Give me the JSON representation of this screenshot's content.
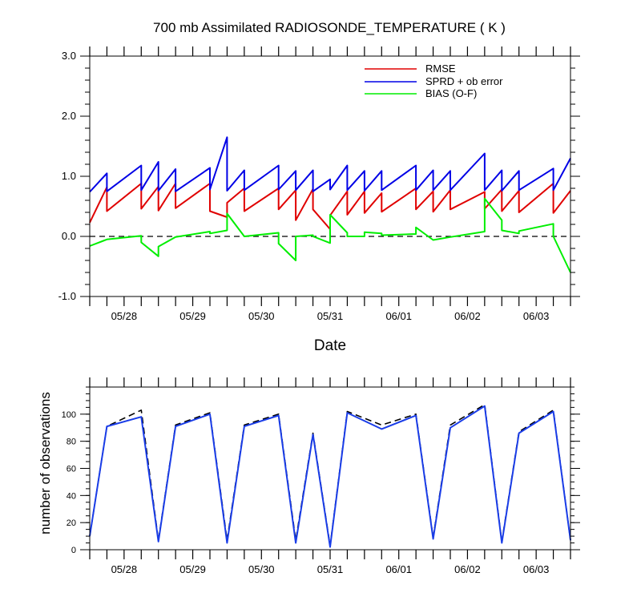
{
  "chart_data": [
    {
      "type": "line",
      "title": "700 mb Assimilated RADIOSONDE_TEMPERATURE ( K )",
      "xlabel": "Date",
      "ylabel": "",
      "ylim": [
        -1.0,
        3.0
      ],
      "yticks": [
        "-1.0",
        "0.0",
        "1.0",
        "2.0",
        "3.0"
      ],
      "xticks": [
        "05/28",
        "05/29",
        "05/30",
        "05/31",
        "06/01",
        "06/02",
        "06/03"
      ],
      "zero_line": "dashed",
      "legend_position": "top-right",
      "series": [
        {
          "name": "RMSE",
          "color": "#e00000",
          "x": [
            0,
            0.25,
            0.25,
            0.75,
            0.75,
            1,
            1,
            1.25,
            1.25,
            1.75,
            1.75,
            2,
            2,
            2.25,
            2.25,
            2.75,
            2.75,
            3,
            3,
            3.25,
            3.25,
            3.5,
            3.5,
            3.75,
            3.75,
            4,
            4,
            4.25,
            4.25,
            4.75,
            4.75,
            5,
            5,
            5.25,
            5.25,
            5.75,
            5.75,
            6,
            6,
            6.25,
            6.25,
            6.75,
            6.75,
            7
          ],
          "values": [
            0.23,
            0.82,
            0.42,
            0.88,
            0.46,
            0.83,
            0.43,
            0.88,
            0.47,
            0.88,
            0.42,
            0.32,
            0.56,
            0.8,
            0.42,
            0.8,
            0.45,
            0.77,
            0.27,
            0.79,
            0.45,
            0.12,
            0.35,
            0.75,
            0.36,
            0.75,
            0.39,
            0.72,
            0.41,
            0.8,
            0.45,
            0.75,
            0.41,
            0.77,
            0.45,
            0.74,
            0.46,
            0.78,
            0.42,
            0.76,
            0.4,
            0.88,
            0.39,
            0.76
          ]
        },
        {
          "name": "SPRD + ob error",
          "color": "#0000e6",
          "x": [
            0,
            0.25,
            0.25,
            0.75,
            0.75,
            1,
            1,
            1.25,
            1.25,
            1.75,
            1.75,
            2,
            2,
            2.25,
            2.25,
            2.75,
            2.75,
            3,
            3,
            3.25,
            3.25,
            3.5,
            3.5,
            3.75,
            3.75,
            4,
            4,
            4.25,
            4.25,
            4.75,
            4.75,
            5,
            5,
            5.25,
            5.25,
            5.75,
            5.75,
            6,
            6,
            6.25,
            6.25,
            6.75,
            6.75,
            7
          ],
          "values": [
            0.74,
            1.05,
            0.75,
            1.18,
            0.77,
            1.24,
            0.76,
            1.12,
            0.75,
            1.14,
            0.78,
            1.65,
            0.76,
            1.1,
            0.77,
            1.18,
            0.78,
            1.09,
            0.77,
            1.1,
            0.75,
            0.95,
            0.78,
            1.18,
            0.77,
            1.09,
            0.76,
            1.09,
            0.77,
            1.18,
            0.77,
            1.1,
            0.77,
            1.09,
            0.77,
            1.38,
            0.77,
            1.1,
            0.76,
            1.09,
            0.77,
            1.13,
            0.77,
            1.3
          ]
        },
        {
          "name": "BIAS (O-F)",
          "color": "#00ee00",
          "x": [
            0,
            0.25,
            0.25,
            0.75,
            0.75,
            1,
            1,
            1.25,
            1.25,
            1.75,
            1.75,
            2,
            2,
            2.25,
            2.25,
            2.75,
            2.75,
            3,
            3,
            3.25,
            3.25,
            3.5,
            3.5,
            3.75,
            3.75,
            4,
            4,
            4.25,
            4.25,
            4.75,
            4.75,
            5,
            5,
            5.25,
            5.25,
            5.75,
            5.75,
            6,
            6,
            6.25,
            6.25,
            6.75,
            6.75,
            7
          ],
          "values": [
            -0.16,
            -0.05,
            -0.05,
            0.01,
            -0.1,
            -0.33,
            -0.17,
            -0.01,
            -0.01,
            0.08,
            0.05,
            0.1,
            0.38,
            0.0,
            0.0,
            0.06,
            -0.12,
            -0.4,
            0.0,
            0.02,
            0.0,
            -0.11,
            0.36,
            0.06,
            0.0,
            0.0,
            0.07,
            0.05,
            0.02,
            0.04,
            0.15,
            -0.06,
            -0.06,
            -0.01,
            -0.01,
            0.08,
            0.63,
            0.27,
            0.1,
            0.05,
            0.09,
            0.21,
            0.0,
            -0.6
          ]
        }
      ]
    },
    {
      "type": "line",
      "title": "",
      "xlabel": "",
      "ylabel": "number of observations",
      "ylim": [
        0,
        120
      ],
      "yticks": [
        "0",
        "20",
        "40",
        "60",
        "80",
        "100"
      ],
      "xticks": [
        "05/28",
        "05/29",
        "05/30",
        "05/31",
        "06/01",
        "06/02",
        "06/03"
      ],
      "series": [
        {
          "color": "#000000",
          "dash": true,
          "x": [
            0,
            0.25,
            0.75,
            1,
            1.25,
            1.75,
            2,
            2.25,
            2.75,
            3,
            3.25,
            3.5,
            3.75,
            4.25,
            4.75,
            5,
            5.25,
            5.75,
            6,
            6.25,
            6.75,
            7
          ],
          "values": [
            10,
            91,
            103,
            7,
            92,
            101,
            7,
            92,
            100,
            7,
            86,
            3,
            102,
            92,
            100,
            9,
            92,
            107,
            6,
            87,
            103,
            7
          ]
        },
        {
          "color": "#1a3de8",
          "dash": false,
          "x": [
            0,
            0.25,
            0.75,
            1,
            1.25,
            1.75,
            2,
            2.25,
            2.75,
            3,
            3.25,
            3.5,
            3.75,
            4.25,
            4.75,
            5,
            5.25,
            5.75,
            6,
            6.25,
            6.75,
            7
          ],
          "values": [
            10,
            91,
            98,
            6,
            91,
            100,
            5,
            91,
            99,
            5,
            85,
            2,
            101,
            89,
            99,
            8,
            90,
            106,
            5,
            86,
            102,
            7
          ]
        }
      ]
    }
  ]
}
